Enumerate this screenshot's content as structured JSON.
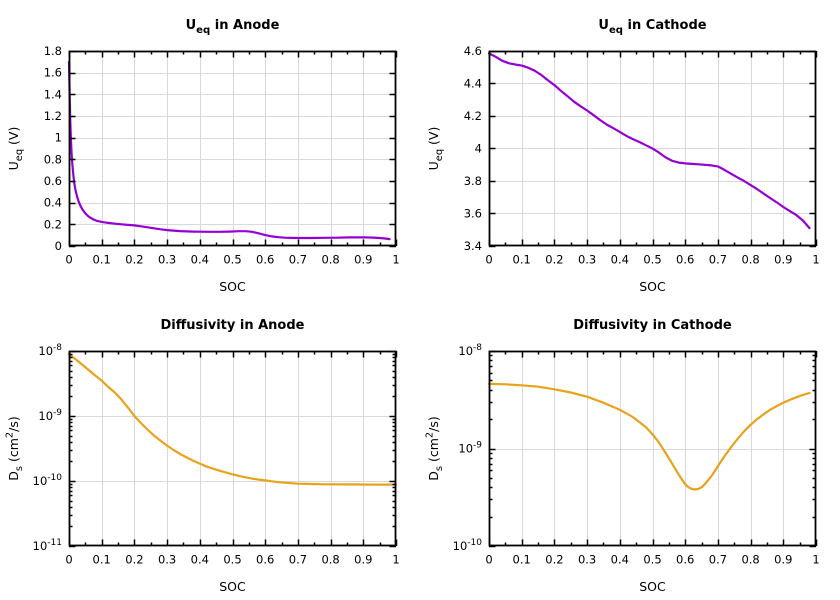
{
  "figure": {
    "background": "#ffffff",
    "grid_color": "#d9d9d9",
    "axis_color": "#000000",
    "text_color": "#000000"
  },
  "chart_data": [
    {
      "id": "ueq-anode",
      "type": "line",
      "title_parts": [
        {
          "t": "U"
        },
        {
          "t": "eq",
          "sub": true
        },
        {
          "t": " in Anode"
        }
      ],
      "xlabel": "SOC",
      "ylabel_parts": [
        {
          "t": "U"
        },
        {
          "t": "eq",
          "sub": true
        },
        {
          "t": " (V)"
        }
      ],
      "line_color": "#9400D3",
      "x_scale": "linear",
      "y_scale": "linear",
      "xlim": [
        0,
        1
      ],
      "ylim": [
        0,
        1.8
      ],
      "x_ticks": [
        0,
        0.1,
        0.2,
        0.3,
        0.4,
        0.5,
        0.6,
        0.7,
        0.8,
        0.9,
        1
      ],
      "x_tick_labels": [
        "0",
        "0.1",
        "0.2",
        "0.3",
        "0.4",
        "0.5",
        "0.6",
        "0.7",
        "0.8",
        "0.9",
        "1"
      ],
      "y_ticks": [
        0,
        0.2,
        0.4,
        0.6,
        0.8,
        1,
        1.2,
        1.4,
        1.6,
        1.8
      ],
      "y_tick_labels": [
        "0",
        "0.2",
        "0.4",
        "0.6",
        "0.8",
        "1",
        "1.2",
        "1.4",
        "1.6",
        "1.8"
      ],
      "grid": true,
      "points": [
        [
          0,
          1.7
        ],
        [
          0.002,
          1.38
        ],
        [
          0.004,
          1.14
        ],
        [
          0.006,
          0.97
        ],
        [
          0.008,
          0.85
        ],
        [
          0.01,
          0.76
        ],
        [
          0.013,
          0.66
        ],
        [
          0.016,
          0.585
        ],
        [
          0.02,
          0.515
        ],
        [
          0.025,
          0.452
        ],
        [
          0.03,
          0.406
        ],
        [
          0.036,
          0.365
        ],
        [
          0.042,
          0.334
        ],
        [
          0.05,
          0.301
        ],
        [
          0.058,
          0.277
        ],
        [
          0.066,
          0.259
        ],
        [
          0.075,
          0.245
        ],
        [
          0.085,
          0.233
        ],
        [
          0.1,
          0.222
        ],
        [
          0.12,
          0.213
        ],
        [
          0.14,
          0.206
        ],
        [
          0.16,
          0.2
        ],
        [
          0.18,
          0.195
        ],
        [
          0.2,
          0.19
        ],
        [
          0.22,
          0.182
        ],
        [
          0.24,
          0.173
        ],
        [
          0.26,
          0.163
        ],
        [
          0.28,
          0.154
        ],
        [
          0.3,
          0.147
        ],
        [
          0.32,
          0.142
        ],
        [
          0.34,
          0.138
        ],
        [
          0.36,
          0.135
        ],
        [
          0.38,
          0.133
        ],
        [
          0.4,
          0.132
        ],
        [
          0.43,
          0.131
        ],
        [
          0.46,
          0.131
        ],
        [
          0.49,
          0.133
        ],
        [
          0.52,
          0.137
        ],
        [
          0.54,
          0.137
        ],
        [
          0.56,
          0.131
        ],
        [
          0.58,
          0.117
        ],
        [
          0.6,
          0.101
        ],
        [
          0.62,
          0.089
        ],
        [
          0.64,
          0.081
        ],
        [
          0.66,
          0.077
        ],
        [
          0.68,
          0.075
        ],
        [
          0.7,
          0.074
        ],
        [
          0.74,
          0.074
        ],
        [
          0.78,
          0.076
        ],
        [
          0.82,
          0.077
        ],
        [
          0.86,
          0.079
        ],
        [
          0.9,
          0.08
        ],
        [
          0.93,
          0.078
        ],
        [
          0.95,
          0.074
        ],
        [
          0.97,
          0.068
        ],
        [
          0.98,
          0.064
        ]
      ]
    },
    {
      "id": "ueq-cathode",
      "type": "line",
      "title_parts": [
        {
          "t": "U"
        },
        {
          "t": "eq",
          "sub": true
        },
        {
          "t": " in Cathode"
        }
      ],
      "xlabel": "SOC",
      "ylabel_parts": [
        {
          "t": "U"
        },
        {
          "t": "eq",
          "sub": true
        },
        {
          "t": " (V)"
        }
      ],
      "line_color": "#9400D3",
      "x_scale": "linear",
      "y_scale": "linear",
      "xlim": [
        0,
        1
      ],
      "ylim": [
        3.4,
        4.6
      ],
      "x_ticks": [
        0,
        0.1,
        0.2,
        0.3,
        0.4,
        0.5,
        0.6,
        0.7,
        0.8,
        0.9,
        1
      ],
      "x_tick_labels": [
        "0",
        "0.1",
        "0.2",
        "0.3",
        "0.4",
        "0.5",
        "0.6",
        "0.7",
        "0.8",
        "0.9",
        "1"
      ],
      "y_ticks": [
        3.4,
        3.6,
        3.8,
        4,
        4.2,
        4.4,
        4.6
      ],
      "y_tick_labels": [
        "3.4",
        "3.6",
        "3.8",
        "4",
        "4.2",
        "4.4",
        "4.6"
      ],
      "grid": true,
      "points": [
        [
          0,
          4.585
        ],
        [
          0.02,
          4.565
        ],
        [
          0.04,
          4.54
        ],
        [
          0.06,
          4.525
        ],
        [
          0.08,
          4.517
        ],
        [
          0.1,
          4.51
        ],
        [
          0.12,
          4.497
        ],
        [
          0.14,
          4.478
        ],
        [
          0.16,
          4.452
        ],
        [
          0.18,
          4.42
        ],
        [
          0.2,
          4.39
        ],
        [
          0.22,
          4.355
        ],
        [
          0.24,
          4.322
        ],
        [
          0.26,
          4.288
        ],
        [
          0.28,
          4.26
        ],
        [
          0.3,
          4.234
        ],
        [
          0.32,
          4.205
        ],
        [
          0.34,
          4.175
        ],
        [
          0.36,
          4.148
        ],
        [
          0.38,
          4.125
        ],
        [
          0.4,
          4.102
        ],
        [
          0.42,
          4.078
        ],
        [
          0.44,
          4.058
        ],
        [
          0.46,
          4.04
        ],
        [
          0.48,
          4.02
        ],
        [
          0.5,
          4.0
        ],
        [
          0.52,
          3.975
        ],
        [
          0.54,
          3.945
        ],
        [
          0.56,
          3.924
        ],
        [
          0.58,
          3.913
        ],
        [
          0.6,
          3.908
        ],
        [
          0.62,
          3.905
        ],
        [
          0.64,
          3.903
        ],
        [
          0.66,
          3.9
        ],
        [
          0.68,
          3.896
        ],
        [
          0.7,
          3.89
        ],
        [
          0.72,
          3.868
        ],
        [
          0.74,
          3.845
        ],
        [
          0.76,
          3.822
        ],
        [
          0.78,
          3.8
        ],
        [
          0.8,
          3.775
        ],
        [
          0.82,
          3.75
        ],
        [
          0.84,
          3.722
        ],
        [
          0.86,
          3.695
        ],
        [
          0.88,
          3.668
        ],
        [
          0.9,
          3.64
        ],
        [
          0.92,
          3.615
        ],
        [
          0.94,
          3.59
        ],
        [
          0.96,
          3.557
        ],
        [
          0.98,
          3.51
        ]
      ]
    },
    {
      "id": "diffusivity-anode",
      "type": "line",
      "title_parts": [
        {
          "t": "Diffusivity in Anode"
        }
      ],
      "xlabel": "SOC",
      "ylabel_parts": [
        {
          "t": "D"
        },
        {
          "t": "s",
          "sub": true
        },
        {
          "t": " (cm"
        },
        {
          "t": "2",
          "sup": true
        },
        {
          "t": "/s)"
        }
      ],
      "line_color": "#E8A21C",
      "x_scale": "linear",
      "y_scale": "log",
      "xlim": [
        0,
        1
      ],
      "ylim_exp": [
        -11,
        -8
      ],
      "x_ticks": [
        0,
        0.1,
        0.2,
        0.3,
        0.4,
        0.5,
        0.6,
        0.7,
        0.8,
        0.9,
        1
      ],
      "x_tick_labels": [
        "0",
        "0.1",
        "0.2",
        "0.3",
        "0.4",
        "0.5",
        "0.6",
        "0.7",
        "0.8",
        "0.9",
        "1"
      ],
      "y_tick_exponents": [
        -11,
        -10,
        -9,
        -8
      ],
      "grid": true,
      "points": [
        [
          0,
          9e-09
        ],
        [
          0.02,
          7.5e-09
        ],
        [
          0.04,
          6.2e-09
        ],
        [
          0.06,
          5.1e-09
        ],
        [
          0.08,
          4.2e-09
        ],
        [
          0.1,
          3.5e-09
        ],
        [
          0.12,
          2.8e-09
        ],
        [
          0.14,
          2.3e-09
        ],
        [
          0.16,
          1.8e-09
        ],
        [
          0.18,
          1.35e-09
        ],
        [
          0.2,
          1e-09
        ],
        [
          0.22,
          7.8e-10
        ],
        [
          0.24,
          6.2e-10
        ],
        [
          0.26,
          5e-10
        ],
        [
          0.28,
          4.15e-10
        ],
        [
          0.3,
          3.5e-10
        ],
        [
          0.32,
          3e-10
        ],
        [
          0.34,
          2.6e-10
        ],
        [
          0.36,
          2.3e-10
        ],
        [
          0.38,
          2.05e-10
        ],
        [
          0.4,
          1.85e-10
        ],
        [
          0.42,
          1.68e-10
        ],
        [
          0.44,
          1.55e-10
        ],
        [
          0.46,
          1.44e-10
        ],
        [
          0.48,
          1.35e-10
        ],
        [
          0.5,
          1.27e-10
        ],
        [
          0.52,
          1.2e-10
        ],
        [
          0.54,
          1.14e-10
        ],
        [
          0.56,
          1.09e-10
        ],
        [
          0.58,
          1.05e-10
        ],
        [
          0.6,
          1.02e-10
        ],
        [
          0.62,
          9.9e-11
        ],
        [
          0.64,
          9.6e-11
        ],
        [
          0.66,
          9.4e-11
        ],
        [
          0.68,
          9.25e-11
        ],
        [
          0.7,
          9.1e-11
        ],
        [
          0.74,
          9e-11
        ],
        [
          0.78,
          8.9e-11
        ],
        [
          0.85,
          8.85e-11
        ],
        [
          0.92,
          8.8e-11
        ],
        [
          1,
          8.8e-11
        ]
      ]
    },
    {
      "id": "diffusivity-cathode",
      "type": "line",
      "title_parts": [
        {
          "t": "Diffusivity in Cathode"
        }
      ],
      "xlabel": "SOC",
      "ylabel_parts": [
        {
          "t": "D"
        },
        {
          "t": "s",
          "sub": true
        },
        {
          "t": " (cm"
        },
        {
          "t": "2",
          "sup": true
        },
        {
          "t": "/s)"
        }
      ],
      "line_color": "#E8A21C",
      "x_scale": "linear",
      "y_scale": "log",
      "xlim": [
        0,
        1
      ],
      "ylim_exp": [
        -10,
        -8
      ],
      "x_ticks": [
        0,
        0.1,
        0.2,
        0.3,
        0.4,
        0.5,
        0.6,
        0.7,
        0.8,
        0.9,
        1
      ],
      "x_tick_labels": [
        "0",
        "0.1",
        "0.2",
        "0.3",
        "0.4",
        "0.5",
        "0.6",
        "0.7",
        "0.8",
        "0.9",
        "1"
      ],
      "y_tick_exponents": [
        -10,
        -9,
        -8
      ],
      "grid": true,
      "points": [
        [
          0,
          4.6e-09
        ],
        [
          0.05,
          4.55e-09
        ],
        [
          0.1,
          4.45e-09
        ],
        [
          0.15,
          4.3e-09
        ],
        [
          0.2,
          4.05e-09
        ],
        [
          0.25,
          3.75e-09
        ],
        [
          0.3,
          3.4e-09
        ],
        [
          0.35,
          2.95e-09
        ],
        [
          0.4,
          2.5e-09
        ],
        [
          0.44,
          2.1e-09
        ],
        [
          0.48,
          1.65e-09
        ],
        [
          0.5,
          1.4e-09
        ],
        [
          0.52,
          1.15e-09
        ],
        [
          0.54,
          9e-10
        ],
        [
          0.56,
          7e-10
        ],
        [
          0.58,
          5.4e-10
        ],
        [
          0.6,
          4.3e-10
        ],
        [
          0.61,
          4e-10
        ],
        [
          0.62,
          3.85e-10
        ],
        [
          0.63,
          3.8e-10
        ],
        [
          0.64,
          3.85e-10
        ],
        [
          0.65,
          4e-10
        ],
        [
          0.66,
          4.3e-10
        ],
        [
          0.68,
          5.2e-10
        ],
        [
          0.7,
          6.6e-10
        ],
        [
          0.72,
          8.3e-10
        ],
        [
          0.74,
          1.03e-09
        ],
        [
          0.76,
          1.25e-09
        ],
        [
          0.78,
          1.5e-09
        ],
        [
          0.8,
          1.75e-09
        ],
        [
          0.82,
          2e-09
        ],
        [
          0.84,
          2.25e-09
        ],
        [
          0.86,
          2.5e-09
        ],
        [
          0.88,
          2.72e-09
        ],
        [
          0.9,
          2.95e-09
        ],
        [
          0.92,
          3.15e-09
        ],
        [
          0.94,
          3.35e-09
        ],
        [
          0.96,
          3.55e-09
        ],
        [
          0.98,
          3.72e-09
        ]
      ]
    }
  ]
}
